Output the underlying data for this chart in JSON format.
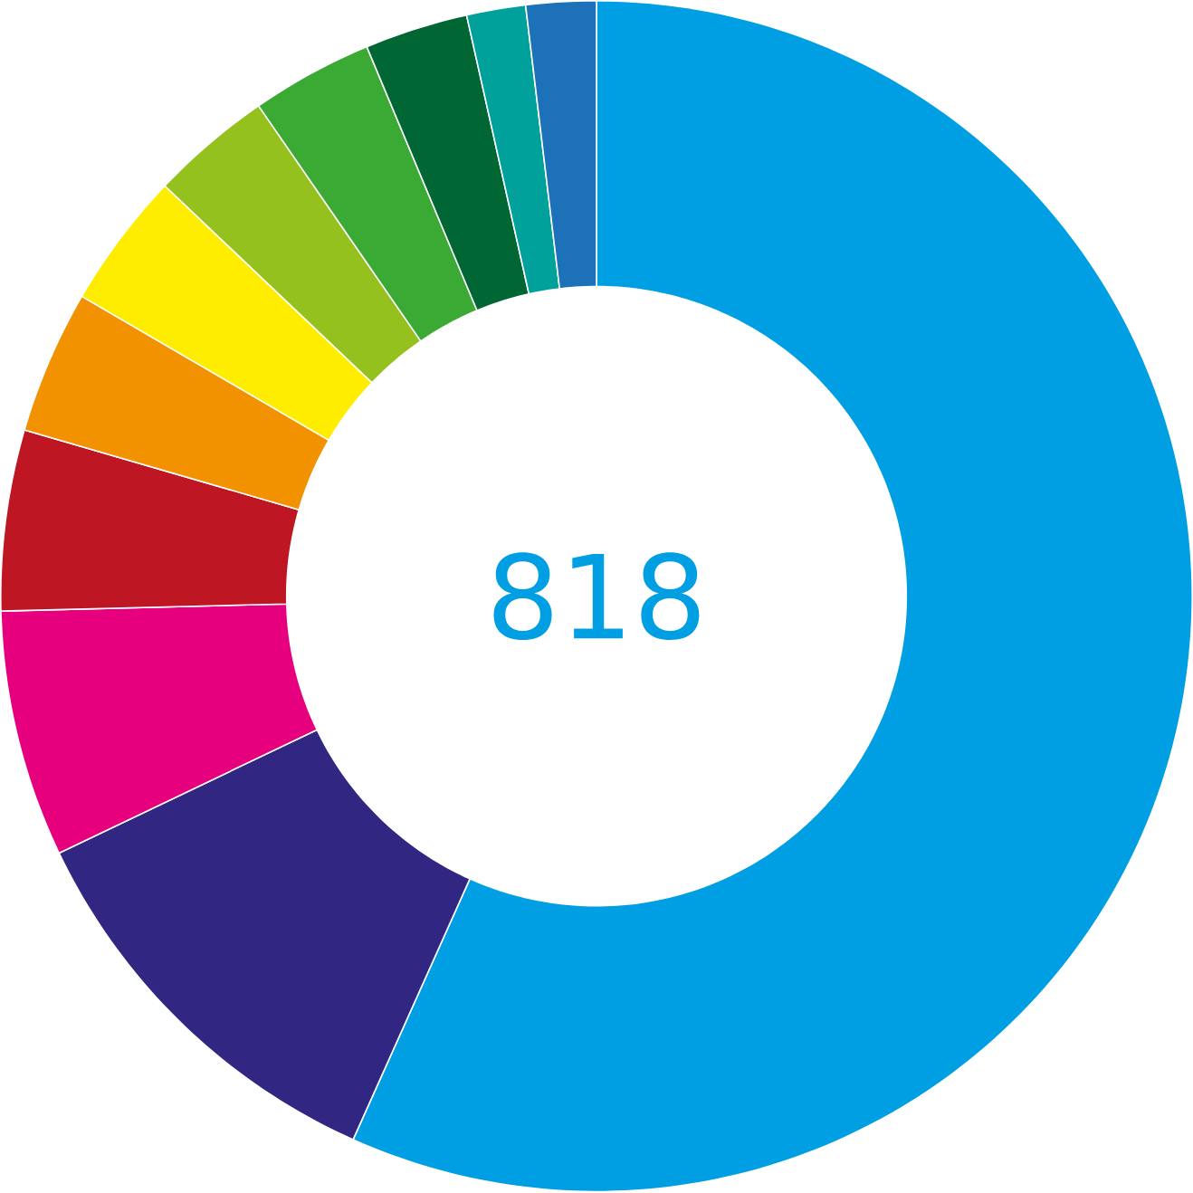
{
  "chart_data": {
    "type": "donut",
    "categories": [
      null,
      null,
      null,
      null,
      null,
      null,
      null,
      null,
      null,
      null,
      null
    ],
    "values": [
      56.7,
      11.2,
      6.7,
      4.9,
      3.9,
      3.7,
      3.3,
      3.3,
      2.8,
      1.6,
      1.9
    ],
    "colors": [
      "#009fe3",
      "#312783",
      "#e6007e",
      "#be1622",
      "#f39200",
      "#ffed00",
      "#95c11f",
      "#3aaa35",
      "#006633",
      "#00a19a",
      "#1d71b8"
    ],
    "annotations": [
      "818"
    ]
  }
}
